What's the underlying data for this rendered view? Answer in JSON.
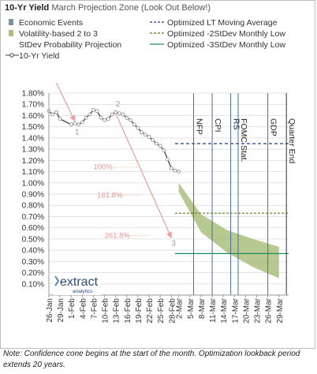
{
  "chart_data": {
    "type": "line",
    "title": "10-Yr Yield",
    "subtitle": "March Projection Zone (Look Out Below!)",
    "ylim": [
      0.0,
      1.8
    ],
    "y_ticks": [
      "1.80%",
      "1.70%",
      "1.60%",
      "1.50%",
      "1.40%",
      "1.30%",
      "1.20%",
      "1.10%",
      "1.00%",
      "0.90%",
      "0.80%",
      "0.70%",
      "0.60%",
      "0.50%",
      "0.40%",
      "0.30%",
      "0.20%",
      "0.10%"
    ],
    "y_tick_values": [
      1.8,
      1.7,
      1.6,
      1.5,
      1.4,
      1.3,
      1.2,
      1.1,
      1.0,
      0.9,
      0.8,
      0.7,
      0.6,
      0.5,
      0.4,
      0.3,
      0.2,
      0.1
    ],
    "x_ticks": [
      "26-Jan",
      "29-Jan",
      "1-Feb",
      "4-Feb",
      "7-Feb",
      "10-Feb",
      "13-Feb",
      "16-Feb",
      "19-Feb",
      "22-Feb",
      "25-Feb",
      "28-Feb",
      "2-Mar",
      "5-Mar",
      "8-Mar",
      "11-Mar",
      "14-Mar",
      "17-Mar",
      "20-Mar",
      "23-Mar",
      "26-Mar",
      "29-Mar"
    ],
    "legend": [
      {
        "name": "Economic Events",
        "type": "box",
        "color": "#7b93a8"
      },
      {
        "name": "Volatility-based 2 to 3 StDev Probability Projection",
        "type": "box",
        "color": "#a8bf7c"
      },
      {
        "name": "10-Yr Yield",
        "type": "line",
        "color": "#404040"
      },
      {
        "name": "Optimized LT Moving Average",
        "type": "dashed",
        "color": "#1f3b8c"
      },
      {
        "name": "Optimized -2StDev Monthly Low",
        "type": "dashed",
        "color": "#5a7a1e"
      },
      {
        "name": "Optimized -3StDev Monthly Low",
        "type": "solid",
        "color": "#1f8a5a"
      }
    ],
    "series": [
      {
        "name": "10-Yr Yield",
        "color": "#404040",
        "x": [
          "26-Jan",
          "27-Jan",
          "28-Jan",
          "29-Jan",
          "1-Feb",
          "2-Feb",
          "3-Feb",
          "4-Feb",
          "5-Feb",
          "6-Feb",
          "7-Feb",
          "8-Feb",
          "9-Feb",
          "10-Feb",
          "11-Feb",
          "12-Feb",
          "13-Feb",
          "14-Feb",
          "15-Feb",
          "16-Feb",
          "17-Feb",
          "18-Feb",
          "19-Feb",
          "20-Feb",
          "21-Feb",
          "22-Feb",
          "23-Feb",
          "24-Feb",
          "25-Feb",
          "26-Feb",
          "27-Feb",
          "28-Feb",
          "1-Mar",
          "2-Mar"
        ],
        "y": [
          1.64,
          1.61,
          1.63,
          1.57,
          1.52,
          1.53,
          1.52,
          1.54,
          1.58,
          1.61,
          1.65,
          1.64,
          1.58,
          1.56,
          1.57,
          1.61,
          1.63,
          1.62,
          1.61,
          1.58,
          1.56,
          1.52,
          1.49,
          1.45,
          1.43,
          1.41,
          1.38,
          1.35,
          1.33,
          1.29,
          1.21,
          1.13,
          1.11,
          1.1
        ]
      }
    ],
    "projection_cone": {
      "name": "Volatility-based 2 to 3 StDev Probability Projection",
      "color": "#a8bf7c",
      "start": "2-Mar",
      "end": "29-Mar",
      "upper": [
        1.0,
        0.72,
        0.58,
        0.5,
        0.43
      ],
      "lower": [
        0.92,
        0.56,
        0.38,
        0.25,
        0.15
      ],
      "dates": [
        "2-Mar",
        "8-Mar",
        "15-Mar",
        "22-Mar",
        "29-Mar"
      ]
    },
    "reference_lines": [
      {
        "name": "Optimized LT Moving Average",
        "value": 1.35,
        "from": "1-Mar",
        "to": "31-Mar"
      },
      {
        "name": "Optimized -2StDev Monthly Low",
        "value": 0.73,
        "from": "1-Mar",
        "to": "31-Mar"
      },
      {
        "name": "Optimized -3StDev Monthly Low",
        "value": 0.37,
        "from": "1-Mar",
        "to": "31-Mar"
      }
    ],
    "events": [
      {
        "label": "NFP",
        "date": "6-Mar"
      },
      {
        "label": "CPI",
        "date": "11-Mar"
      },
      {
        "label": "RS",
        "date": "16-Mar"
      },
      {
        "label": "FOMC Stat.",
        "date": "18-Mar"
      },
      {
        "label": "GDP",
        "date": "26-Mar"
      },
      {
        "label": "Quarter End",
        "date": "31-Mar"
      }
    ],
    "annotations": {
      "wave_labels": [
        {
          "text": "1",
          "x": "2-Feb",
          "y": 1.43
        },
        {
          "text": "2",
          "x": "13-Feb",
          "y": 1.68
        },
        {
          "text": "3",
          "x": "28-Feb",
          "y": 0.44
        }
      ],
      "fib_labels": [
        {
          "text": "100%",
          "x": "7-Feb",
          "y": 1.12
        },
        {
          "text": "161.8%",
          "x": "8-Feb",
          "y": 0.87
        },
        {
          "text": "261.8%",
          "x": "10-Feb",
          "y": 0.51
        }
      ],
      "arrows": [
        {
          "from": {
            "x": "28-Jan",
            "y": 1.89
          },
          "to": {
            "x": "2-Feb",
            "y": 1.55
          }
        },
        {
          "from": {
            "x": "13-Feb",
            "y": 1.62
          },
          "to": {
            "x": "28-Feb",
            "y": 0.51
          }
        }
      ]
    }
  },
  "logo": {
    "main": "extract",
    "sub": "analytics"
  },
  "note": "Note: Confidence cone begins at the start of the month. Optimization lookback period extends 20 years."
}
